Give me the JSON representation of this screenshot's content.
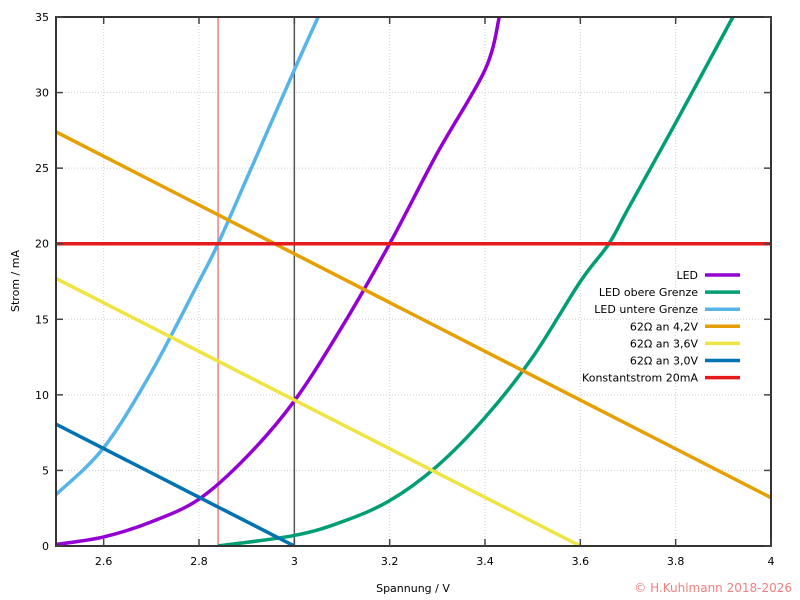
{
  "chart_data": {
    "type": "line",
    "title": "",
    "xlabel": "Spannung / V",
    "ylabel": "Strom / mA",
    "xlim": [
      2.5,
      4
    ],
    "ylim": [
      0,
      35
    ],
    "grid": true,
    "legend_position": "right-middle",
    "xticks": [
      2.6,
      2.8,
      3,
      3.2,
      3.4,
      3.6,
      3.8,
      4
    ],
    "xtick_labels": [
      "2.6",
      "2.8",
      "3",
      "3.2",
      "3.4",
      "3.6",
      "3.8",
      "4"
    ],
    "yticks": [
      0,
      5,
      10,
      15,
      20,
      25,
      30,
      35
    ],
    "ytick_labels": [
      "0",
      "5",
      "10",
      "15",
      "20",
      "25",
      "30",
      "35"
    ],
    "vertical_lines": [
      {
        "x": 2.84,
        "color": "#f08080"
      },
      {
        "x": 3.0,
        "color": "#555555"
      }
    ],
    "series": [
      {
        "name": "LED",
        "color": "#9400d3",
        "x": [
          2.5,
          2.6,
          2.7,
          2.8,
          2.9,
          3.0,
          3.1,
          3.2,
          3.3,
          3.4,
          3.43
        ],
        "y": [
          0.1,
          0.6,
          1.6,
          3.1,
          5.9,
          9.6,
          14.5,
          20,
          26,
          31.5,
          35
        ]
      },
      {
        "name": "LED obere Grenze",
        "color": "#009e73",
        "x": [
          2.84,
          3.0,
          3.1,
          3.2,
          3.3,
          3.4,
          3.5,
          3.6,
          3.66,
          3.7,
          3.8,
          3.92
        ],
        "y": [
          0,
          0.7,
          1.6,
          3.0,
          5.3,
          8.5,
          12.5,
          17.5,
          20,
          22.3,
          28,
          35
        ]
      },
      {
        "name": "LED untere Grenze",
        "color": "#56b4e9",
        "x": [
          2.5,
          2.6,
          2.7,
          2.8,
          2.84,
          2.9,
          3.0,
          3.05
        ],
        "y": [
          3.4,
          6.5,
          11.5,
          17.5,
          20,
          24.3,
          31.5,
          35
        ]
      },
      {
        "name": "62Ω an 4,2V",
        "color": "#e69f00",
        "x": [
          2.5,
          4.0
        ],
        "y": [
          27.4,
          3.2
        ]
      },
      {
        "name": "62Ω an 3,6V",
        "color": "#f0e442",
        "x": [
          2.5,
          3.6
        ],
        "y": [
          17.7,
          0
        ]
      },
      {
        "name": "62Ω an 3,0V",
        "color": "#0072b2",
        "x": [
          2.5,
          3.0
        ],
        "y": [
          8.06,
          0
        ]
      },
      {
        "name": "Konstantstrom 20mA",
        "color": "#e41a1c",
        "x": [
          2.5,
          4.0
        ],
        "y": [
          20,
          20
        ]
      }
    ]
  },
  "footer": {
    "copyright": "© H.Kuhlmann 2018-2026"
  }
}
